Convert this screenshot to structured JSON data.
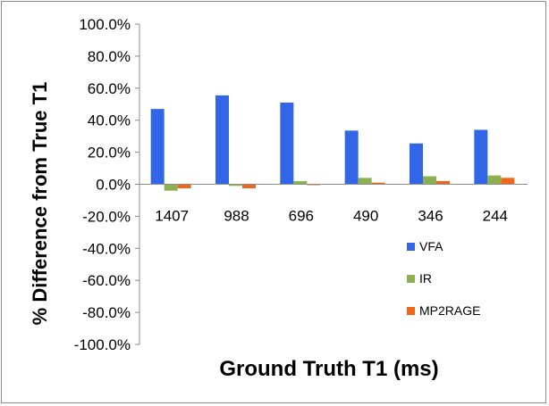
{
  "chart_data": {
    "type": "bar",
    "xlabel": "Ground Truth T1 (ms)",
    "ylabel": "% Difference from True T1",
    "categories": [
      "1407",
      "988",
      "696",
      "490",
      "346",
      "244"
    ],
    "series": [
      {
        "name": "VFA",
        "color": "#3366e6",
        "values": [
          47.0,
          55.5,
          51.0,
          33.5,
          25.5,
          34.0
        ]
      },
      {
        "name": "IR",
        "color": "#8db151",
        "values": [
          -4.0,
          -1.0,
          2.0,
          4.0,
          5.0,
          5.5
        ]
      },
      {
        "name": "MP2RAGE",
        "color": "#f0661a",
        "values": [
          -2.5,
          -2.5,
          -0.5,
          1.0,
          2.0,
          4.0
        ]
      }
    ],
    "ylim": [
      -100,
      100
    ],
    "yticks": [
      100,
      80,
      60,
      40,
      20,
      0,
      -20,
      -40,
      -60,
      -80,
      -100
    ],
    "ytick_labels": [
      "100.0%",
      "80.0%",
      "60.0%",
      "40.0%",
      "20.0%",
      "0.0%",
      "-20.0%",
      "-40.0%",
      "-60.0%",
      "-80.0%",
      "-100.0%"
    ],
    "grid": false,
    "legend_position": "bottom-right"
  }
}
